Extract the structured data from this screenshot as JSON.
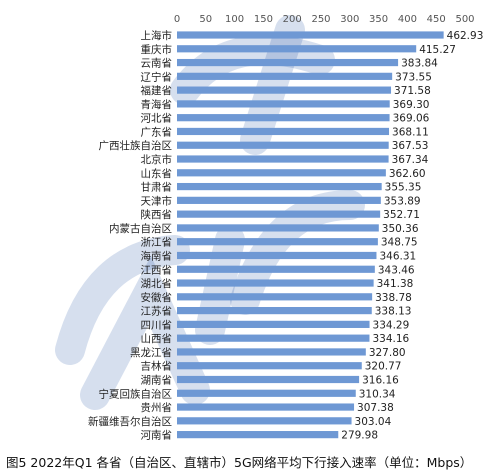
{
  "caption": "图5 2022年Q1 各省（自治区、直辖市）5G网络平均下行接入速率（单位：Mbps）",
  "watermark_text": "CAICT 中国信通院",
  "chart_data": {
    "type": "bar",
    "orientation": "horizontal",
    "title": "",
    "xlabel": "",
    "ylabel": "",
    "xlim": [
      0,
      500
    ],
    "xticks": [
      0,
      50,
      100,
      150,
      200,
      250,
      300,
      350,
      400,
      450,
      500
    ],
    "tick_position": "top",
    "grid": false,
    "legend": "none",
    "bar_color": "#6e98d4",
    "categories": [
      "上海市",
      "重庆市",
      "云南省",
      "辽宁省",
      "福建省",
      "青海省",
      "河北省",
      "广东省",
      "广西壮族自治区",
      "北京市",
      "山东省",
      "甘肃省",
      "天津市",
      "陕西省",
      "内蒙古自治区",
      "浙江省",
      "海南省",
      "江西省",
      "湖北省",
      "安徽省",
      "江苏省",
      "四川省",
      "山西省",
      "黑龙江省",
      "吉林省",
      "湖南省",
      "宁夏回族自治区",
      "贵州省",
      "新疆维吾尔自治区",
      "河南省"
    ],
    "values": [
      462.93,
      415.27,
      383.84,
      373.55,
      371.58,
      369.3,
      369.06,
      368.11,
      367.53,
      367.34,
      362.6,
      355.35,
      353.89,
      352.71,
      350.36,
      348.75,
      346.31,
      343.46,
      341.38,
      338.78,
      338.13,
      334.29,
      334.16,
      327.8,
      320.77,
      316.16,
      310.34,
      307.38,
      303.04,
      279.98
    ],
    "value_labels": [
      "462.93",
      "415.27",
      "383.84",
      "373.55",
      "371.58",
      "369.30",
      "369.06",
      "368.11",
      "367.53",
      "367.34",
      "362.60",
      "355.35",
      "353.89",
      "352.71",
      "350.36",
      "348.75",
      "346.31",
      "343.46",
      "341.38",
      "338.78",
      "338.13",
      "334.29",
      "334.16",
      "327.80",
      "320.77",
      "316.16",
      "310.34",
      "307.38",
      "303.04",
      "279.98"
    ]
  }
}
